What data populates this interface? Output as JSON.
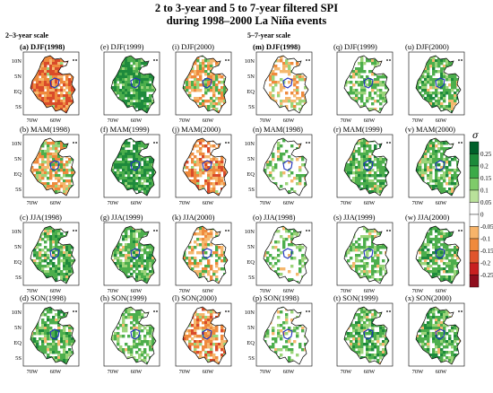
{
  "title": {
    "line1": "2 to 3-year and 5 to 7-year filtered SPI",
    "line2": "during 1998–2000 La Niña events"
  },
  "group_labels": {
    "short_scale": "2–3-year scale",
    "long_scale": "5–7-year scale"
  },
  "panels": [
    {
      "label": "(a) DJF(1998)",
      "bold": true
    },
    {
      "label": "(e) DJF(1999)"
    },
    {
      "label": "(i) DJF(2000)"
    },
    {
      "label": "(m) DJF(1998)",
      "bold": true
    },
    {
      "label": "(q) DJF(1999)"
    },
    {
      "label": "(u) DJF(2000)"
    },
    {
      "label": "(b) MAM(1998)"
    },
    {
      "label": "(f) MAM(1999)"
    },
    {
      "label": "(j) MAM(2000)"
    },
    {
      "label": "(n) MAM(1998)"
    },
    {
      "label": "(r) MAM(1999)"
    },
    {
      "label": "(v) MAM(2000)"
    },
    {
      "label": "(c) JJA(1998)"
    },
    {
      "label": "(g) JJA(1999)"
    },
    {
      "label": "(k) JJA(2000)"
    },
    {
      "label": "(o) JJA(1998)"
    },
    {
      "label": "(s) JJA(1999)"
    },
    {
      "label": "(w) JJA(2000)"
    },
    {
      "label": "(d) SON(1998)"
    },
    {
      "label": "(h) SON(1999)"
    },
    {
      "label": "(l) SON(2000)"
    },
    {
      "label": "(p) SON(1998)"
    },
    {
      "label": "(t) SON(1999)"
    },
    {
      "label": "(x) SON(2000)"
    }
  ],
  "panel_patterns": [
    "dry_strong",
    "wet_strong",
    "mixed",
    "mixed_small",
    "wet_light",
    "wet_mid",
    "mixed",
    "wet_strong",
    "dry_mid",
    "sparse_wet",
    "wet_mid",
    "wet_mid",
    "wet_mid",
    "wet_mid",
    "dry_patches",
    "sparse_wet",
    "wet_light",
    "wet_mid",
    "wet_mid",
    "wet_light",
    "dry_mid",
    "sparse_wet",
    "wet_mid",
    "wet_mid"
  ],
  "lat_ticks": [
    "10N",
    "5N",
    "EQ",
    "5S"
  ],
  "lon_ticks": [
    "70W",
    "60W"
  ],
  "colorbar": {
    "title": "σ",
    "ticks": [
      "0.25",
      "0.2",
      "0.15",
      "0.1",
      "0.05",
      "0",
      "-0.05",
      "-0.1",
      "-0.15",
      "-0.2",
      "-0.25"
    ],
    "colors": [
      "#00602a",
      "#1c8a3a",
      "#3caa48",
      "#7fcb6a",
      "#b9e19a",
      "#ffffff",
      "#ffffff",
      "#f7b46a",
      "#ef8a3d",
      "#e0552c",
      "#c82020",
      "#8f0e1e"
    ]
  },
  "colors": {
    "wet_dark": "#1e8a3c",
    "wet_mid": "#4cae4c",
    "wet_light": "#9bd479",
    "dry_light": "#f5b86e",
    "dry_mid": "#ef8a3d",
    "dry_dark": "#d94b2a",
    "boundary": "#000000",
    "basin": "#1f2fbf"
  }
}
